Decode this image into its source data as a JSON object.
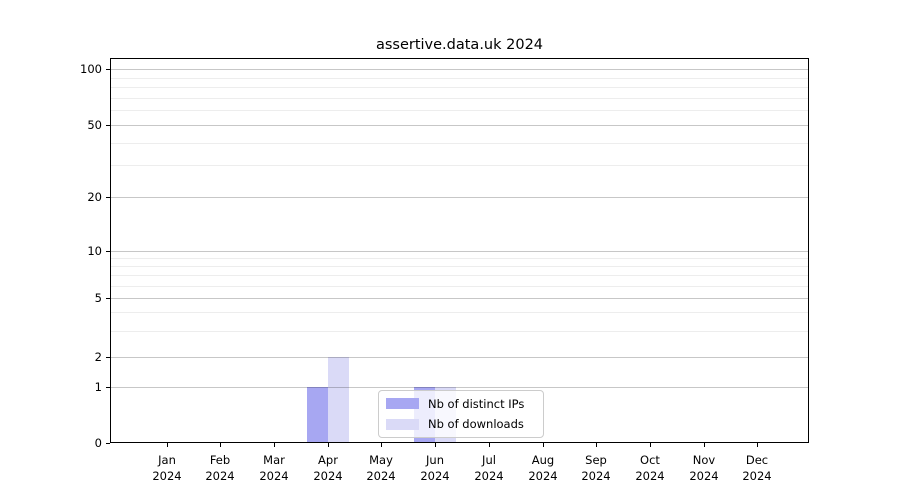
{
  "chart_data": {
    "type": "bar",
    "title": "assertive.data.uk 2024",
    "x_tick_year": "2024",
    "categories": [
      "Jan",
      "Feb",
      "Mar",
      "Apr",
      "May",
      "Jun",
      "Jul",
      "Aug",
      "Sep",
      "Oct",
      "Nov",
      "Dec"
    ],
    "series": [
      {
        "name": "Nb of distinct IPs",
        "color": "#a7a7f2",
        "values": [
          0,
          0,
          0,
          1,
          0,
          1,
          0,
          0,
          0,
          0,
          0,
          0
        ]
      },
      {
        "name": "Nb of downloads",
        "color": "#dadaf7",
        "values": [
          0,
          0,
          0,
          2,
          0,
          1,
          0,
          0,
          0,
          0,
          0,
          0
        ]
      }
    ],
    "yaxis": {
      "ticks": [
        0,
        1,
        2,
        5,
        10,
        20,
        50,
        100
      ],
      "scale": "log-like with 0 baseline",
      "range": [
        0,
        110
      ]
    },
    "legend": {
      "entries": [
        "Nb of distinct IPs",
        "Nb of downloads"
      ],
      "position": "lower center"
    },
    "grid": true
  }
}
